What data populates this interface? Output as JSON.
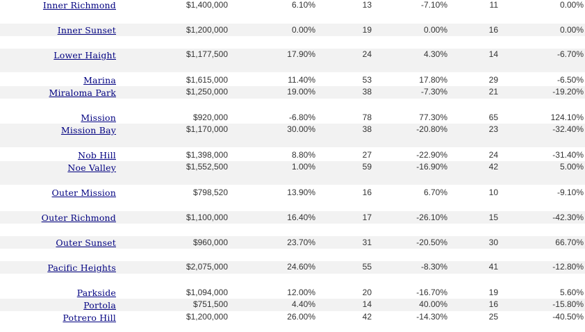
{
  "table": {
    "rows": [
      {
        "name": "Inner Richmond",
        "median_price": "$1,400,000",
        "price_change": "6.10%",
        "sales": "13",
        "sales_change": "-7.10%",
        "count": "11",
        "count_change": "0.00%"
      },
      {
        "name": "Inner Sunset",
        "median_price": "$1,200,000",
        "price_change": "0.00%",
        "sales": "19",
        "sales_change": "0.00%",
        "count": "16",
        "count_change": "0.00%"
      },
      {
        "name": "Lower Haight",
        "median_price": "$1,177,500",
        "price_change": "17.90%",
        "sales": "24",
        "sales_change": "4.30%",
        "count": "14",
        "count_change": "-6.70%"
      },
      {
        "name": "Marina",
        "median_price": "$1,615,000",
        "price_change": "11.40%",
        "sales": "53",
        "sales_change": "17.80%",
        "count": "29",
        "count_change": "-6.50%"
      },
      {
        "name": "Miraloma Park",
        "median_price": "$1,250,000",
        "price_change": "19.00%",
        "sales": "38",
        "sales_change": "-7.30%",
        "count": "21",
        "count_change": "-19.20%"
      },
      {
        "name": "Mission",
        "median_price": "$920,000",
        "price_change": "-6.80%",
        "sales": "78",
        "sales_change": "77.30%",
        "count": "65",
        "count_change": "124.10%"
      },
      {
        "name": "Mission Bay",
        "median_price": "$1,170,000",
        "price_change": "30.00%",
        "sales": "38",
        "sales_change": "-20.80%",
        "count": "23",
        "count_change": "-32.40%"
      },
      {
        "name": "Nob Hill",
        "median_price": "$1,398,000",
        "price_change": "8.80%",
        "sales": "27",
        "sales_change": "-22.90%",
        "count": "24",
        "count_change": "-31.40%"
      },
      {
        "name": "Noe Valley",
        "median_price": "$1,552,500",
        "price_change": "1.00%",
        "sales": "59",
        "sales_change": "-16.90%",
        "count": "42",
        "count_change": "5.00%"
      },
      {
        "name": "Outer Mission",
        "median_price": "$798,520",
        "price_change": "13.90%",
        "sales": "16",
        "sales_change": "6.70%",
        "count": "10",
        "count_change": "-9.10%"
      },
      {
        "name": "Outer Richmond",
        "median_price": "$1,100,000",
        "price_change": "16.40%",
        "sales": "17",
        "sales_change": "-26.10%",
        "count": "15",
        "count_change": "-42.30%"
      },
      {
        "name": "Outer Sunset",
        "median_price": "$960,000",
        "price_change": "23.70%",
        "sales": "31",
        "sales_change": "-20.50%",
        "count": "30",
        "count_change": "66.70%"
      },
      {
        "name": "Pacific Heights",
        "median_price": "$2,075,000",
        "price_change": "24.60%",
        "sales": "55",
        "sales_change": "-8.30%",
        "count": "41",
        "count_change": "-12.80%"
      },
      {
        "name": "Parkside",
        "median_price": "$1,094,000",
        "price_change": "12.00%",
        "sales": "20",
        "sales_change": "-16.70%",
        "count": "19",
        "count_change": "5.60%"
      },
      {
        "name": "Portola",
        "median_price": "$751,500",
        "price_change": "4.40%",
        "sales": "14",
        "sales_change": "40.00%",
        "count": "16",
        "count_change": "-15.80%"
      },
      {
        "name": "Potrero Hill",
        "median_price": "$1,200,000",
        "price_change": "26.00%",
        "sales": "42",
        "sales_change": "-14.30%",
        "count": "25",
        "count_change": "-40.50%"
      }
    ]
  }
}
